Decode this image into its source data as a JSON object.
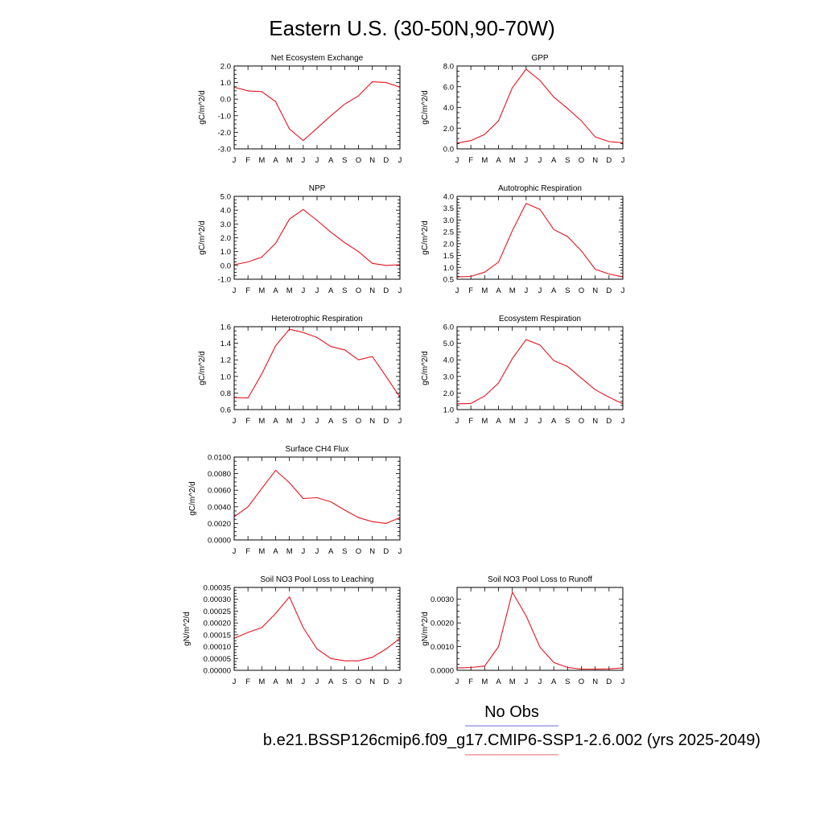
{
  "title": "Eastern U.S. (30-50N,90-70W)",
  "months": [
    "J",
    "F",
    "M",
    "A",
    "M",
    "J",
    "J",
    "A",
    "S",
    "O",
    "N",
    "D",
    "J"
  ],
  "colors": {
    "series": "#e8141e",
    "legend_line1": "#6a6ae0",
    "legend_line2": "#e86a6a"
  },
  "legend": {
    "line1": "No Obs",
    "line2": "b.e21.BSSP126cmip6.f09_g17.CMIP6-SSP1-2.6.002 (yrs 2025-2049)"
  },
  "chart_data": [
    {
      "type": "line",
      "title": "Net Ecosystem Exchange",
      "ylabel": "gC/m^2/d",
      "ylim": [
        -3.0,
        2.0
      ],
      "yticks": [
        -3.0,
        -2.0,
        -1.0,
        0.0,
        1.0,
        2.0
      ],
      "yticklabels": [
        "-3.0",
        "-2.0",
        "-1.0",
        "0.0",
        "1.0",
        "2.0"
      ],
      "values": [
        0.72,
        0.5,
        0.45,
        -0.15,
        -1.8,
        -2.5,
        -1.75,
        -1.0,
        -0.3,
        0.2,
        1.05,
        1.0,
        0.72
      ]
    },
    {
      "type": "line",
      "title": "GPP",
      "ylabel": "gC/m^2/d",
      "ylim": [
        0.0,
        8.0
      ],
      "yticks": [
        0.0,
        2.0,
        4.0,
        6.0,
        8.0
      ],
      "yticklabels": [
        "0.0",
        "2.0",
        "4.0",
        "6.0",
        "8.0"
      ],
      "values": [
        0.55,
        0.8,
        1.4,
        2.7,
        5.9,
        7.7,
        6.6,
        5.0,
        3.9,
        2.7,
        1.15,
        0.7,
        0.6
      ]
    },
    {
      "type": "line",
      "title": "NPP",
      "ylabel": "gC/m^2/d",
      "ylim": [
        -1.0,
        5.0
      ],
      "yticks": [
        -1.0,
        0.0,
        1.0,
        2.0,
        3.0,
        4.0,
        5.0
      ],
      "yticklabels": [
        "-1.0",
        "0.0",
        "1.0",
        "2.0",
        "3.0",
        "4.0",
        "5.0"
      ],
      "values": [
        0.05,
        0.25,
        0.6,
        1.6,
        3.35,
        4.05,
        3.25,
        2.4,
        1.65,
        1.0,
        0.15,
        0.0,
        0.05
      ]
    },
    {
      "type": "line",
      "title": "Autotrophic Respiration",
      "ylabel": "gC/m^2/d",
      "ylim": [
        0.5,
        4.0
      ],
      "yticks": [
        0.5,
        1.0,
        1.5,
        2.0,
        2.5,
        3.0,
        3.5,
        4.0
      ],
      "yticklabels": [
        "0.5",
        "1.0",
        "1.5",
        "2.0",
        "2.5",
        "3.0",
        "3.5",
        "4.0"
      ],
      "values": [
        0.6,
        0.62,
        0.8,
        1.22,
        2.55,
        3.7,
        3.45,
        2.6,
        2.3,
        1.7,
        0.92,
        0.72,
        0.6
      ]
    },
    {
      "type": "line",
      "title": "Heterotrophic Respiration",
      "ylabel": "gC/m^2/d",
      "ylim": [
        0.6,
        1.6
      ],
      "yticks": [
        0.6,
        0.8,
        1.0,
        1.2,
        1.4,
        1.6
      ],
      "yticklabels": [
        "0.6",
        "0.8",
        "1.0",
        "1.2",
        "1.4",
        "1.6"
      ],
      "values": [
        0.745,
        0.74,
        1.03,
        1.37,
        1.57,
        1.53,
        1.47,
        1.36,
        1.32,
        1.2,
        1.24,
        1.0,
        0.75
      ]
    },
    {
      "type": "line",
      "title": "Ecosystem Respiration",
      "ylabel": "gC/m^2/d",
      "ylim": [
        1.0,
        6.0
      ],
      "yticks": [
        1.0,
        2.0,
        3.0,
        4.0,
        5.0,
        6.0
      ],
      "yticklabels": [
        "1.0",
        "2.0",
        "3.0",
        "4.0",
        "5.0",
        "6.0"
      ],
      "values": [
        1.35,
        1.37,
        1.82,
        2.6,
        4.08,
        5.22,
        4.9,
        3.95,
        3.6,
        2.9,
        2.2,
        1.75,
        1.35
      ]
    },
    {
      "type": "line",
      "title": "Surface CH4 Flux",
      "ylabel": "gC/m^2/d",
      "ylim": [
        0.0,
        0.01
      ],
      "yticks": [
        0.0,
        0.002,
        0.004,
        0.006,
        0.008,
        0.01
      ],
      "yticklabels": [
        "0.0000",
        "0.0020",
        "0.0040",
        "0.0060",
        "0.0080",
        "0.0100"
      ],
      "values": [
        0.0028,
        0.004,
        0.0062,
        0.0084,
        0.0069,
        0.005,
        0.0051,
        0.0046,
        0.0036,
        0.0027,
        0.0022,
        0.002,
        0.0027
      ]
    },
    {
      "type": "line",
      "title": "Soil NO3 Pool Loss to Leaching",
      "ylabel": "gN/m^2/d",
      "ylim": [
        0.0,
        0.00035
      ],
      "yticks": [
        0.0,
        5e-05,
        0.0001,
        0.00015,
        0.0002,
        0.00025,
        0.0003,
        0.00035
      ],
      "yticklabels": [
        "0.00000",
        "0.00005",
        "0.00010",
        "0.00015",
        "0.00020",
        "0.00025",
        "0.00030",
        "0.00035"
      ],
      "values": [
        0.000135,
        0.00016,
        0.00018,
        0.00024,
        0.00031,
        0.00018,
        9e-05,
        5e-05,
        4e-05,
        4e-05,
        5.5e-05,
        9e-05,
        0.000135
      ]
    },
    {
      "type": "line",
      "title": "Soil NO3 Pool Loss to Runoff",
      "ylabel": "gN/m^2/d",
      "ylim": [
        0.0,
        0.0035
      ],
      "yticks": [
        0.0,
        0.001,
        0.002,
        0.003
      ],
      "yticklabels": [
        "0.0000",
        "0.0010",
        "0.0020",
        "0.0030"
      ],
      "values": [
        0.0001,
        0.00012,
        0.00018,
        0.001,
        0.0033,
        0.0023,
        0.00098,
        0.00033,
        0.00012,
        5e-05,
        5e-05,
        6e-05,
        0.0001
      ]
    }
  ]
}
